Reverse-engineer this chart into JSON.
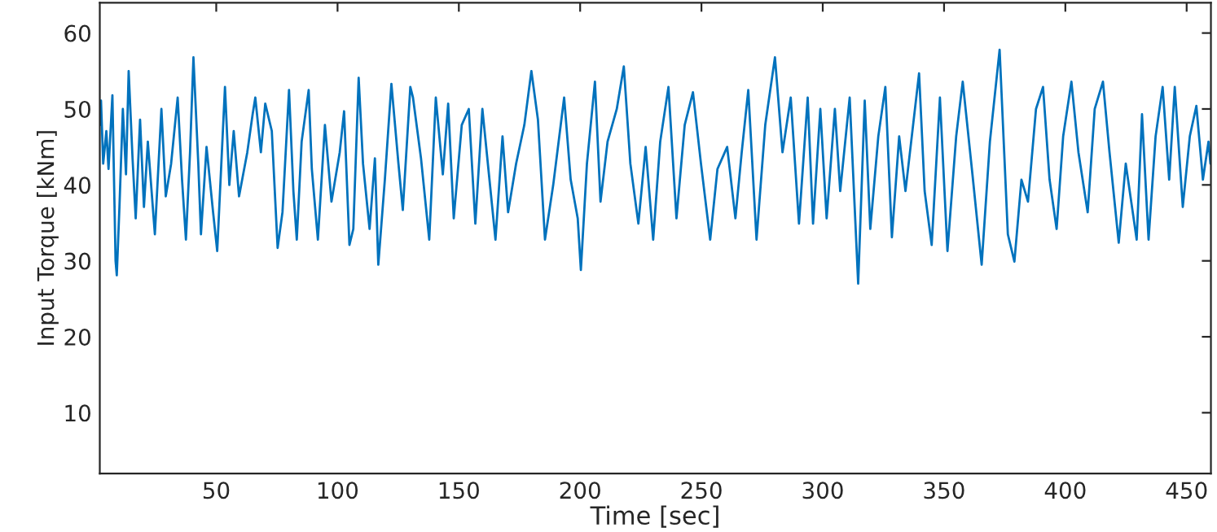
{
  "chart_data": {
    "type": "line",
    "xlabel": "Time [sec]",
    "ylabel": "Input Torque [kNm]",
    "xlim": [
      2,
      460
    ],
    "ylim": [
      2,
      64
    ],
    "xticks": [
      50,
      100,
      150,
      200,
      250,
      300,
      350,
      400,
      450
    ],
    "yticks": [
      10,
      20,
      30,
      40,
      50,
      60
    ],
    "grid": false,
    "legend": false,
    "marker": "none",
    "line_style": "solid",
    "series": [
      {
        "color": "#0072bd",
        "x": [
          2,
          2.5,
          3.4,
          4.7,
          5.6,
          7.2,
          8.5,
          9,
          10.1,
          11.5,
          12.8,
          13.9,
          15.5,
          16.8,
          18.6,
          20.2,
          21.8,
          24.7,
          27.4,
          29.2,
          31.4,
          34.1,
          35.9,
          37.5,
          39.2,
          40.6,
          42.6,
          43.7,
          46,
          48.7,
          50.4,
          52.2,
          53.6,
          55.4,
          57.2,
          59.4,
          62.8,
          65,
          66.1,
          68.4,
          70.2,
          72.9,
          75.3,
          77.3,
          80,
          81.8,
          83.2,
          85.2,
          88.1,
          89.4,
          91.9,
          94.8,
          97.5,
          100.9,
          102.7,
          104.9,
          106.5,
          108.7,
          110.5,
          113.2,
          115.4,
          116.8,
          119.5,
          122.2,
          125.1,
          126.9,
          130,
          131.1,
          134.4,
          137.8,
          140.5,
          143.4,
          145.6,
          147.9,
          151.2,
          154.1,
          156.8,
          159.7,
          162.4,
          165.1,
          168,
          170.3,
          173.6,
          177,
          179.9,
          182.6,
          185.5,
          188.9,
          193.4,
          196.1,
          199,
          200.3,
          202.8,
          206.1,
          208.4,
          211.3,
          215.1,
          218,
          220.7,
          224,
          227,
          230.1,
          233,
          236.4,
          239.7,
          243.1,
          246.5,
          249.8,
          253.6,
          256.6,
          260.6,
          264,
          266.6,
          269.3,
          272.7,
          276.3,
          280.3,
          283.4,
          286.8,
          290.2,
          293.8,
          296,
          299,
          301.6,
          305,
          307.2,
          311.1,
          314.6,
          317.3,
          319.6,
          322.9,
          325.8,
          328.5,
          331.5,
          334.1,
          339.7,
          342,
          344.9,
          348.3,
          351.4,
          355,
          357.7,
          361.7,
          365.5,
          368.9,
          372.9,
          376.3,
          379,
          381.9,
          384.6,
          387.9,
          390.8,
          393.5,
          396.4,
          399.1,
          402.5,
          405.4,
          409.2,
          412.1,
          415.5,
          418.2,
          422,
          424.9,
          429.4,
          431.6,
          434.3,
          437.2,
          440.1,
          442.8,
          445.1,
          448.4,
          451.3,
          454,
          456.7,
          459,
          459.8
        ],
        "values": [
          47.9,
          51.1,
          42.8,
          47.1,
          42.1,
          51.8,
          30,
          28.1,
          37.1,
          50,
          41.4,
          55,
          43.5,
          35.6,
          48.6,
          37.1,
          45.7,
          33.5,
          50,
          38.5,
          42.8,
          51.5,
          40.7,
          32.8,
          44.3,
          56.8,
          42.8,
          33.5,
          45,
          36.4,
          31.3,
          43.5,
          52.9,
          40,
          47.1,
          38.5,
          44.3,
          49.3,
          51.5,
          44.3,
          50.7,
          47.1,
          31.7,
          36.4,
          52.5,
          39.2,
          32.8,
          45.7,
          52.5,
          42.1,
          32.8,
          47.9,
          37.8,
          44.3,
          49.7,
          32.1,
          34.2,
          54.1,
          42.8,
          34.2,
          43.5,
          29.5,
          40.7,
          53.3,
          42.8,
          36.7,
          52.9,
          51.5,
          43.5,
          32.8,
          51.5,
          41.4,
          50.7,
          35.6,
          47.9,
          50,
          34.9,
          50,
          41.4,
          32.8,
          46.4,
          36.4,
          42.8,
          47.9,
          55,
          48.6,
          32.8,
          40,
          51.5,
          40.7,
          35.6,
          28.8,
          42.8,
          53.6,
          37.8,
          45.7,
          50,
          55.6,
          42.8,
          34.9,
          45,
          32.8,
          45.7,
          52.9,
          35.6,
          47.9,
          52.2,
          42.8,
          32.8,
          42.1,
          45,
          35.6,
          44.3,
          52.5,
          32.8,
          47.9,
          56.8,
          44.3,
          51.5,
          34.9,
          51.5,
          34.9,
          50,
          35.6,
          50,
          39.2,
          51.5,
          27,
          51.1,
          34.2,
          46.4,
          52.9,
          33.1,
          46.4,
          39.2,
          54.7,
          39.2,
          32.1,
          51.5,
          31.3,
          46.4,
          53.6,
          41.4,
          29.5,
          45.7,
          57.8,
          33.5,
          29.9,
          40.7,
          37.8,
          50,
          52.9,
          40.7,
          34.2,
          46.4,
          53.6,
          44.3,
          36.4,
          50,
          53.6,
          44.3,
          32.4,
          42.8,
          32.8,
          49.3,
          32.8,
          46.4,
          52.9,
          40.7,
          52.9,
          37.1,
          46.4,
          50.4,
          40.7,
          45.7,
          42.8
        ]
      }
    ]
  }
}
